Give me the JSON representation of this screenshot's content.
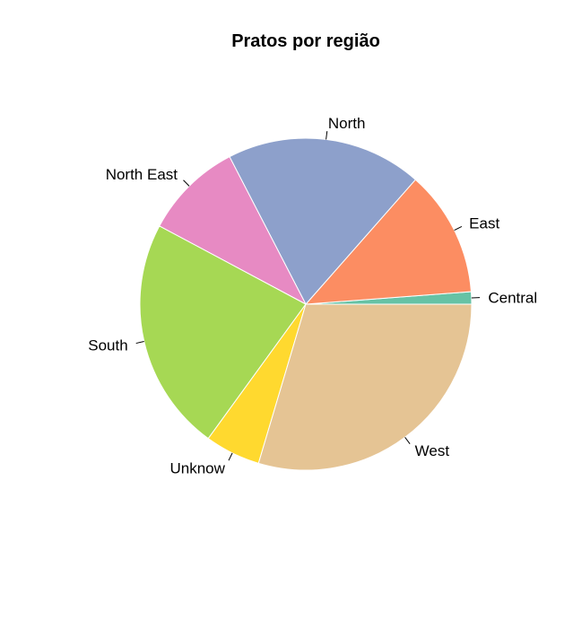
{
  "chart_data": {
    "type": "pie",
    "title": "Pratos por região",
    "start_angle_deg": 0,
    "direction": "counterclockwise",
    "slices": [
      {
        "label": "Central",
        "value": 1.2,
        "color": "#66C2A5"
      },
      {
        "label": "East",
        "value": 12.3,
        "color": "#FC8D62"
      },
      {
        "label": "North",
        "value": 19.1,
        "color": "#8DA0CB"
      },
      {
        "label": "North East",
        "value": 9.6,
        "color": "#E78AC3"
      },
      {
        "label": "South",
        "value": 22.8,
        "color": "#A6D854"
      },
      {
        "label": "Unknow",
        "value": 5.4,
        "color": "#FFD92F"
      },
      {
        "label": "West",
        "value": 29.6,
        "color": "#E5C494"
      }
    ]
  }
}
